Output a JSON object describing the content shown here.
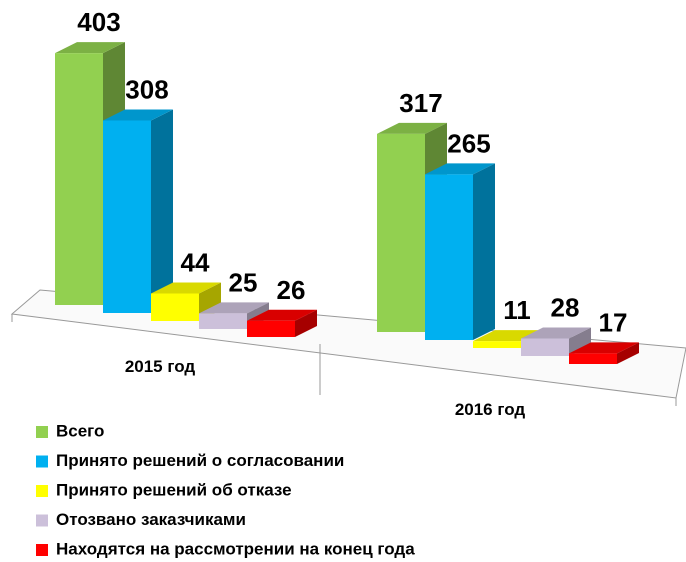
{
  "chart_data": {
    "type": "bar3d",
    "categories": [
      "2015 год",
      "2016 год"
    ],
    "series": [
      {
        "name": "Всего",
        "color": "#92d050",
        "values": [
          403,
          317
        ]
      },
      {
        "name": "Принято решений о согласовании",
        "color": "#00b0f0",
        "values": [
          308,
          265
        ]
      },
      {
        "name": "Принято решений об отказе",
        "color": "#ffff00",
        "values": [
          44,
          11
        ]
      },
      {
        "name": "Отозвано заказчиками",
        "color": "#ccc0da",
        "values": [
          25,
          28
        ]
      },
      {
        "name": "Находятся на рассмотрении на конец года",
        "color": "#ff0000",
        "values": [
          26,
          17
        ]
      }
    ],
    "legend": "bottom-left"
  }
}
